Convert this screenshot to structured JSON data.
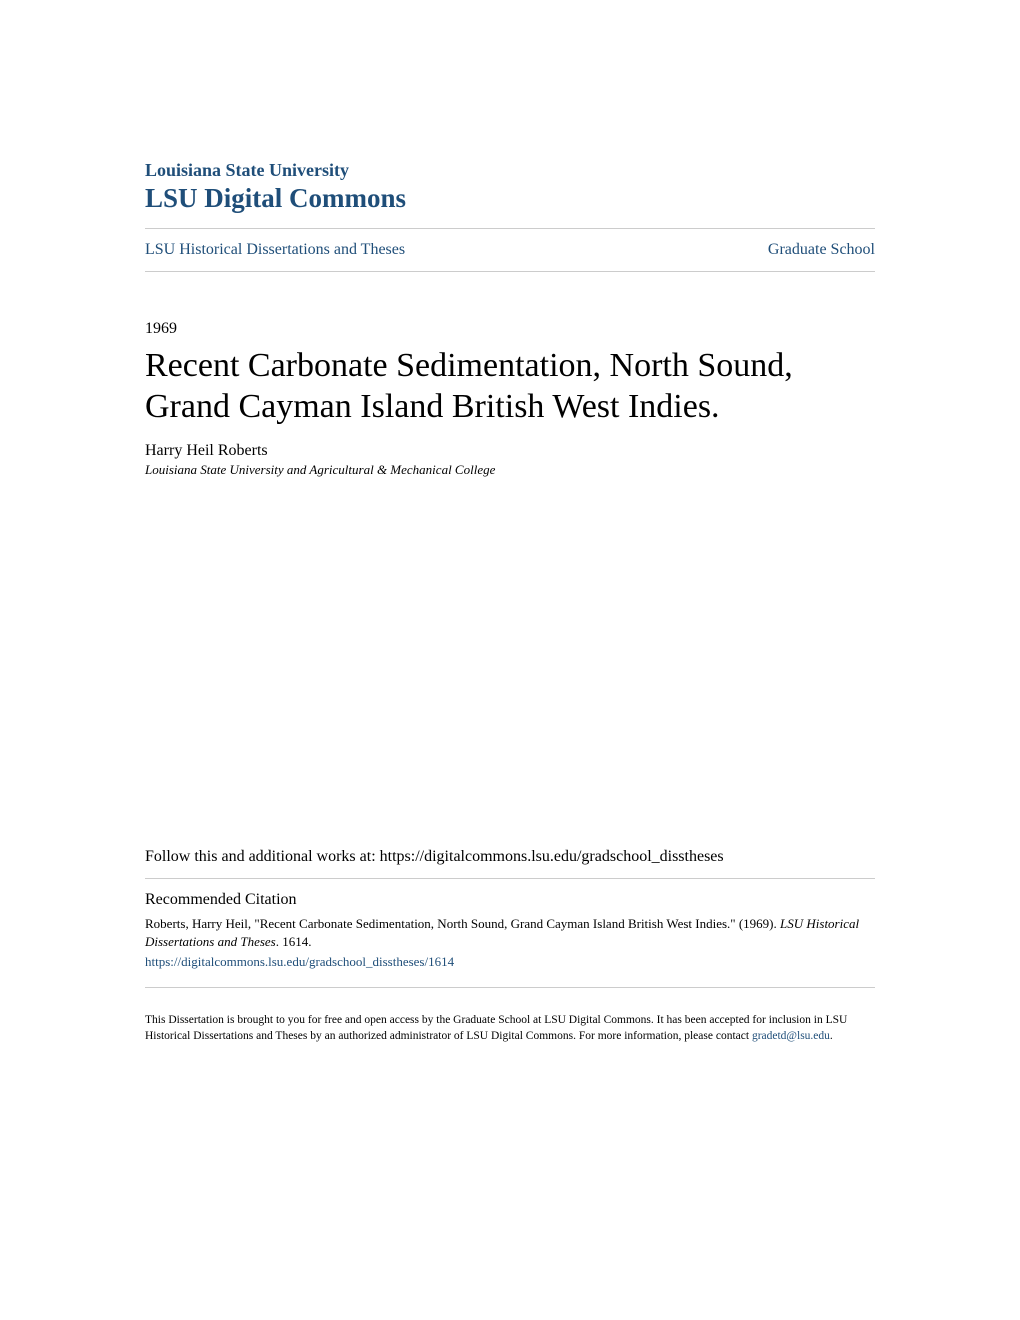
{
  "header": {
    "institution": "Louisiana State University",
    "repository": "LSU Digital Commons"
  },
  "breadcrumb": {
    "collection": "LSU Historical Dissertations and Theses",
    "school": "Graduate School"
  },
  "document": {
    "year": "1969",
    "title": "Recent Carbonate Sedimentation, North Sound, Grand Cayman Island British West Indies.",
    "author": "Harry Heil Roberts",
    "affiliation": "Louisiana State University and Agricultural & Mechanical College"
  },
  "follow": {
    "prefix": "Follow this and additional works at: ",
    "url": "https://digitalcommons.lsu.edu/gradschool_disstheses"
  },
  "citation": {
    "heading": "Recommended Citation",
    "text_part1": "Roberts, Harry Heil, \"Recent Carbonate Sedimentation, North Sound, Grand Cayman Island British West Indies.\" (1969). ",
    "series": "LSU Historical Dissertations and Theses",
    "text_part2": ". 1614.",
    "url": "https://digitalcommons.lsu.edu/gradschool_disstheses/1614"
  },
  "footer": {
    "text": "This Dissertation is brought to you for free and open access by the Graduate School at LSU Digital Commons. It has been accepted for inclusion in LSU Historical Dissertations and Theses by an authorized administrator of LSU Digital Commons. For more information, please contact ",
    "email": "gradetd@lsu.edu",
    "period": "."
  },
  "colors": {
    "link_color": "#1f4e79",
    "text_color": "#000000",
    "divider_color": "#cccccc",
    "background": "#ffffff"
  }
}
